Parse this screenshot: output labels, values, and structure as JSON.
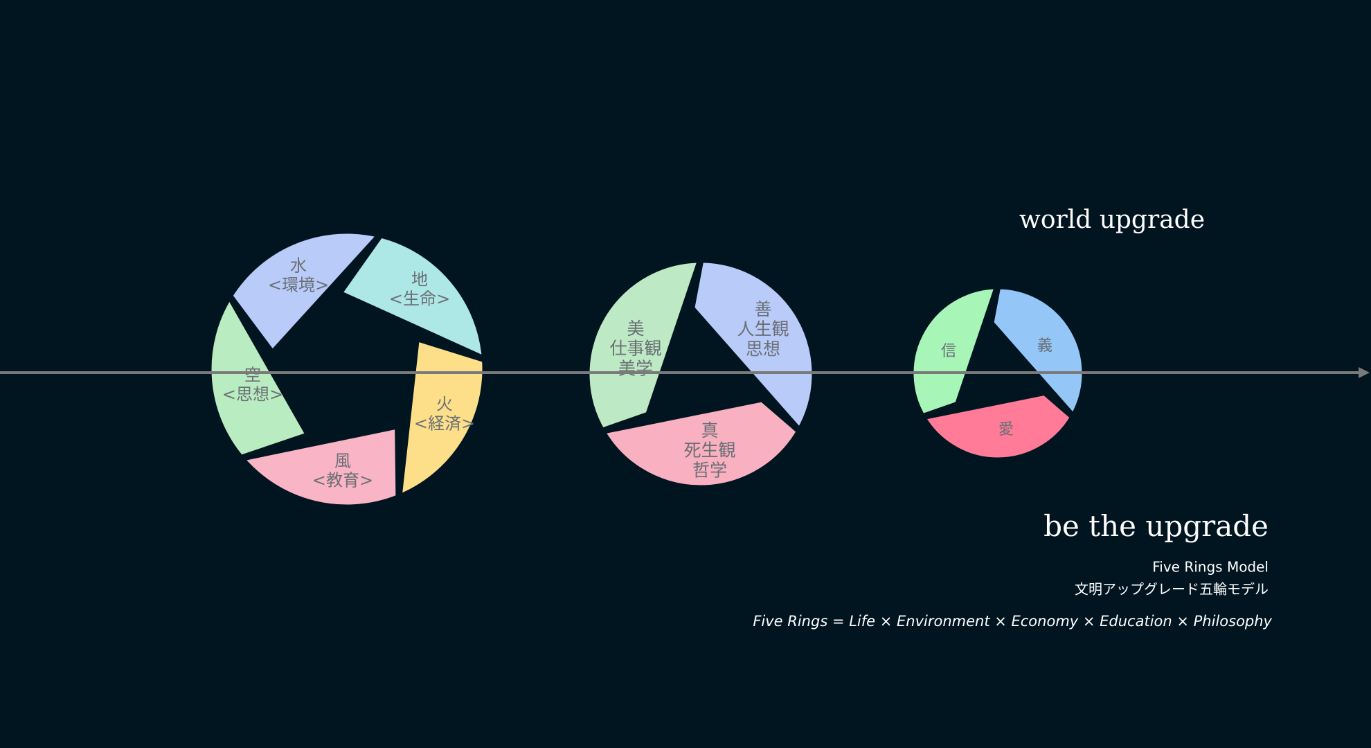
{
  "header": {
    "title": "world upgrade"
  },
  "wheels": [
    {
      "blades": [
        {
          "lines": [
            "水",
            "<環境>"
          ],
          "color": "#aee8e6"
        },
        {
          "lines": [
            "地",
            "<生命>"
          ],
          "color": "#fddf8a"
        },
        {
          "lines": [
            "火",
            "<経済>"
          ],
          "color": "#f9b4c5"
        },
        {
          "lines": [
            "風",
            "<教育>"
          ],
          "color": "#b9ecc0"
        },
        {
          "lines": [
            "空",
            "<思想>"
          ],
          "color": "#b9cbf8"
        }
      ]
    },
    {
      "blades": [
        {
          "lines": [
            "善",
            "人生観",
            "思想"
          ],
          "color": "#b9cbf8"
        },
        {
          "lines": [
            "真",
            "死生観",
            "哲学"
          ],
          "color": "#f9b0c1"
        },
        {
          "lines": [
            "美",
            "仕事観",
            "美学"
          ],
          "color": "#bde9c4"
        }
      ]
    },
    {
      "blades": [
        {
          "lines": [
            "義"
          ],
          "color": "#94c6f8"
        },
        {
          "lines": [
            "愛"
          ],
          "color": "#ff7b98"
        },
        {
          "lines": [
            "信"
          ],
          "color": "#a8f5b8"
        }
      ]
    }
  ],
  "footer": {
    "tagline": "be the upgrade",
    "model": "Five Rings Model",
    "model_ja": "文明アップグレード五輪モデル",
    "formula": "Five Rings = Life × Environment × Economy × Education × Philosophy"
  }
}
